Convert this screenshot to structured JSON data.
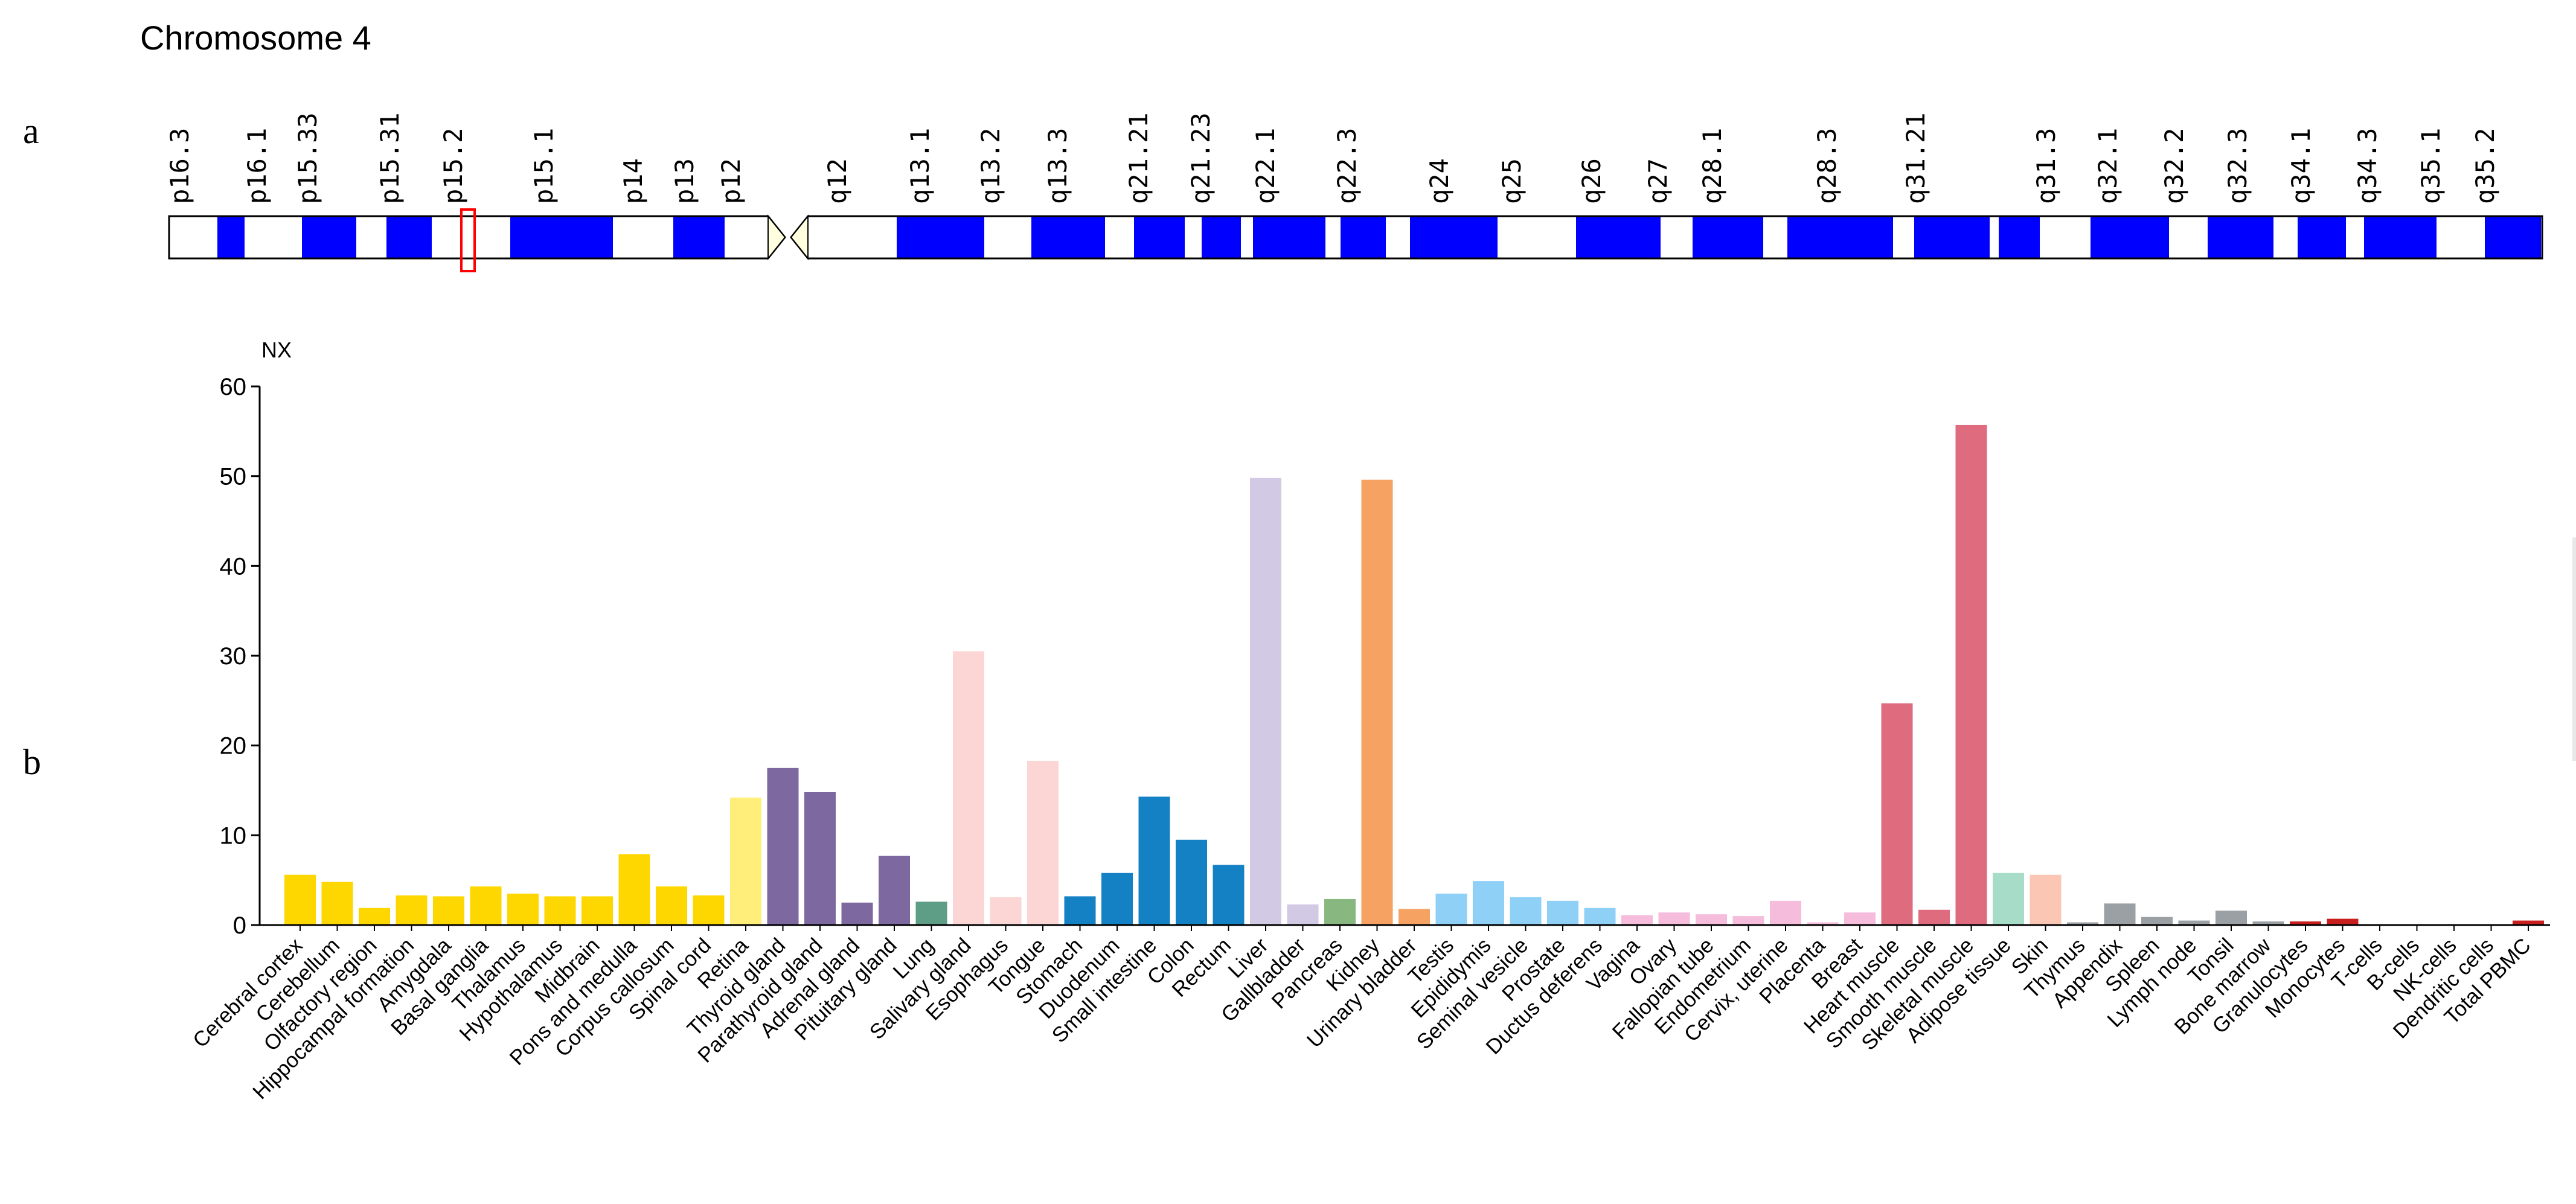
{
  "panels": {
    "a": "a",
    "b": "b"
  },
  "chromosome": {
    "title": "Chromosome 4",
    "bands": [
      "p16.3",
      "p16.1",
      "p15.33",
      "p15.31",
      "p15.2",
      "p15.1",
      "p14",
      "p13",
      "p12",
      "q12",
      "q13.1",
      "q13.2",
      "q13.3",
      "q21.21",
      "q21.23",
      "q22.1",
      "q22.3",
      "q24",
      "q25",
      "q26",
      "q27",
      "q28.1",
      "q28.3",
      "q31.21",
      "q31.3",
      "q32.1",
      "q32.2",
      "q32.3",
      "q34.1",
      "q34.3",
      "q35.1",
      "q35.2"
    ],
    "highlighted_band": "p15.2",
    "colors": {
      "stain": "#0000ff",
      "marker": "#ff0000",
      "centromere": "#ffffe0",
      "outline": "#000000"
    }
  },
  "chart_data": {
    "type": "bar",
    "ylabel": "NX",
    "ylim": [
      0,
      60
    ],
    "yticks": [
      0,
      10,
      20,
      30,
      40,
      50,
      60
    ],
    "grid": false,
    "categories": [
      "Cerebral cortex",
      "Cerebellum",
      "Olfactory region",
      "Hippocampal formation",
      "Amygdala",
      "Basal ganglia",
      "Thalamus",
      "Hypothalamus",
      "Midbrain",
      "Pons and medulla",
      "Corpus callosum",
      "Spinal cord",
      "Retina",
      "Thyroid gland",
      "Parathyroid gland",
      "Adrenal gland",
      "Pituitary gland",
      "Lung",
      "Salivary gland",
      "Esophagus",
      "Tongue",
      "Stomach",
      "Duodenum",
      "Small intestine",
      "Colon",
      "Rectum",
      "Liver",
      "Gallbladder",
      "Pancreas",
      "Kidney",
      "Urinary bladder",
      "Testis",
      "Epididymis",
      "Seminal vesicle",
      "Prostate",
      "Ductus deferens",
      "Vagina",
      "Ovary",
      "Fallopian tube",
      "Endometrium",
      "Cervix, uterine",
      "Placenta",
      "Breast",
      "Heart muscle",
      "Smooth muscle",
      "Skeletal muscle",
      "Adipose tissue",
      "Skin",
      "Thymus",
      "Appendix",
      "Spleen",
      "Lymph node",
      "Tonsil",
      "Bone marrow",
      "Granulocytes",
      "Monocytes",
      "T-cells",
      "B-cells",
      "NK-cells",
      "Dendritic cells",
      "Total PBMC"
    ],
    "values": [
      5.6,
      4.8,
      1.9,
      3.3,
      3.2,
      4.3,
      3.5,
      3.2,
      3.2,
      7.9,
      4.3,
      3.3,
      14.2,
      17.5,
      14.8,
      2.5,
      7.7,
      2.6,
      30.5,
      3.1,
      18.3,
      3.2,
      5.8,
      14.3,
      9.5,
      6.7,
      49.8,
      2.3,
      2.9,
      49.6,
      1.8,
      3.5,
      4.9,
      3.1,
      2.7,
      1.9,
      1.1,
      1.4,
      1.2,
      1.0,
      2.7,
      0.3,
      1.4,
      24.7,
      1.7,
      55.7,
      5.8,
      5.6,
      0.3,
      2.4,
      0.9,
      0.5,
      1.6,
      0.4,
      0.4,
      0.7,
      0.1,
      0.1,
      0.1,
      0.1,
      0.5
    ],
    "colors": [
      "#ffd700",
      "#ffd700",
      "#ffd700",
      "#ffd700",
      "#ffd700",
      "#ffd700",
      "#ffd700",
      "#ffd700",
      "#ffd700",
      "#ffd700",
      "#ffd700",
      "#ffd700",
      "#ffef7a",
      "#7e68a0",
      "#7e68a0",
      "#7e68a0",
      "#7e68a0",
      "#5e9e86",
      "#fcd6d4",
      "#fcd6d4",
      "#fcd6d4",
      "#1481c4",
      "#1481c4",
      "#1481c4",
      "#1481c4",
      "#1481c4",
      "#d2cae4",
      "#d2cae4",
      "#88b880",
      "#f5a262",
      "#f5a262",
      "#8ed0f6",
      "#8ed0f6",
      "#8ed0f6",
      "#8ed0f6",
      "#8ed0f6",
      "#f5bcdc",
      "#f5bcdc",
      "#f5bcdc",
      "#f5bcdc",
      "#f5bcdc",
      "#f5bcdc",
      "#f5bcdc",
      "#de6b7e",
      "#de6b7e",
      "#de6b7e",
      "#a6dcc8",
      "#fbc6b4",
      "#9aa0a4",
      "#9aa0a4",
      "#9aa0a4",
      "#9aa0a4",
      "#9aa0a4",
      "#9aa0a4",
      "#c81e1e",
      "#c81e1e",
      "#c81e1e",
      "#c81e1e",
      "#c81e1e",
      "#c81e1e",
      "#c81e1e"
    ]
  }
}
